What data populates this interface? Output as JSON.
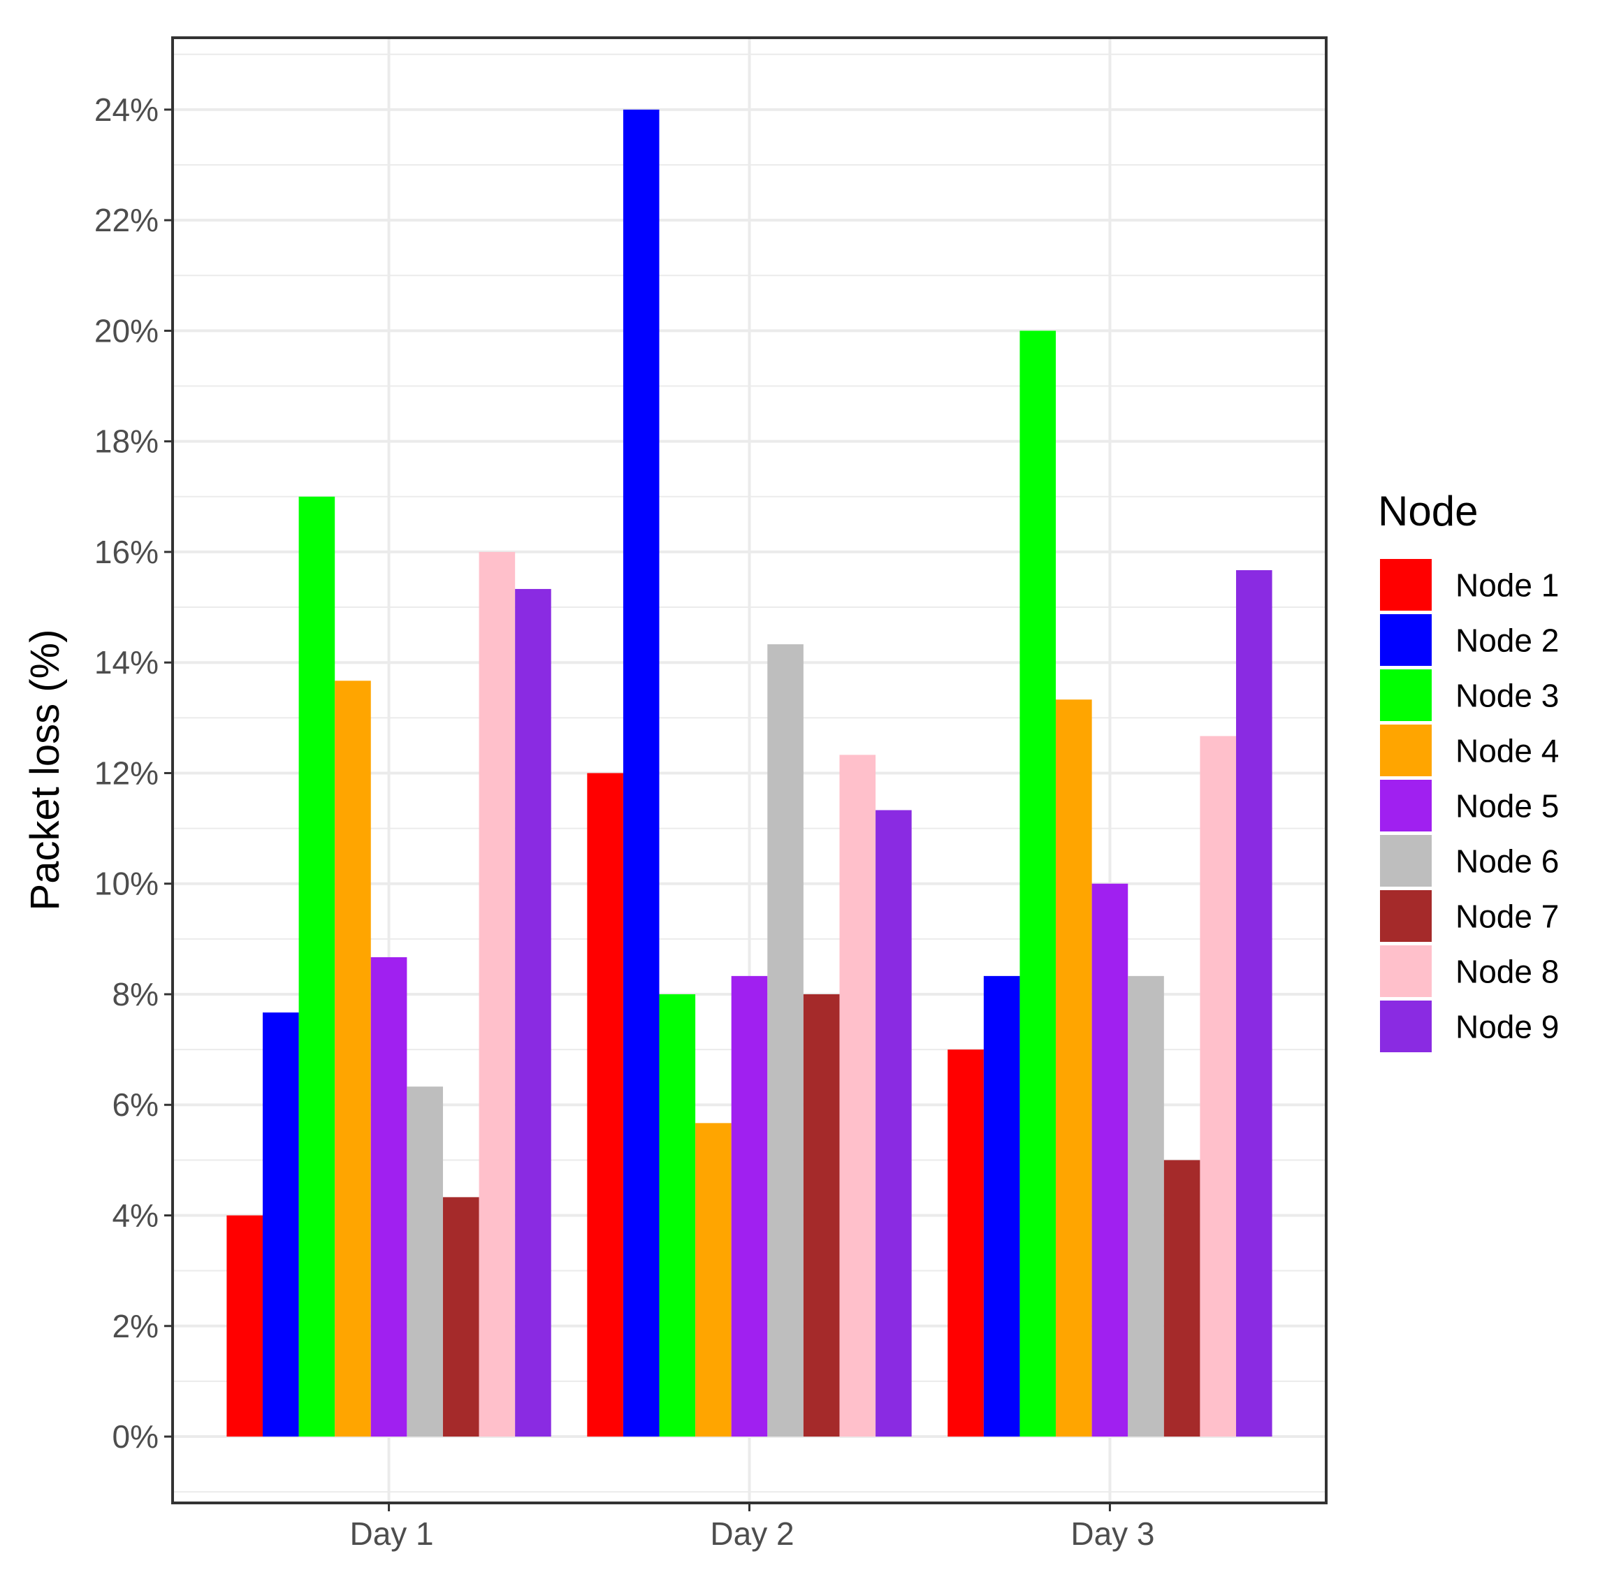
{
  "chart_data": {
    "type": "bar",
    "ylabel": "Packet loss (%)",
    "categories": [
      "Day 1",
      "Day 2",
      "Day 3"
    ],
    "y_ticks": [
      "0%",
      "2%",
      "4%",
      "6%",
      "8%",
      "10%",
      "12%",
      "14%",
      "16%",
      "18%",
      "20%",
      "22%",
      "24%"
    ],
    "ylim": [
      -1.2,
      25.3
    ],
    "grid": true,
    "legend": {
      "title": "Node",
      "placement": "right"
    },
    "series": [
      {
        "name": "Node 1",
        "color": "#ff0000",
        "values": [
          4.0,
          12.0,
          7.0
        ]
      },
      {
        "name": "Node 2",
        "color": "#0000ff",
        "values": [
          7.67,
          24.0,
          8.33
        ]
      },
      {
        "name": "Node 3",
        "color": "#00ff00",
        "values": [
          17.0,
          8.0,
          20.0
        ]
      },
      {
        "name": "Node 4",
        "color": "#ffa500",
        "values": [
          13.67,
          5.67,
          13.33
        ]
      },
      {
        "name": "Node 5",
        "color": "#a020f0",
        "values": [
          8.67,
          8.33,
          10.0
        ]
      },
      {
        "name": "Node 6",
        "color": "#bebebe",
        "values": [
          6.33,
          14.33,
          8.33
        ]
      },
      {
        "name": "Node 7",
        "color": "#a52a2a",
        "values": [
          4.33,
          8.0,
          5.0
        ]
      },
      {
        "name": "Node 8",
        "color": "#ffc0cb",
        "values": [
          16.0,
          12.33,
          12.67
        ]
      },
      {
        "name": "Node 9",
        "color": "#8a2be2",
        "values": [
          15.33,
          11.33,
          15.67
        ]
      }
    ]
  }
}
